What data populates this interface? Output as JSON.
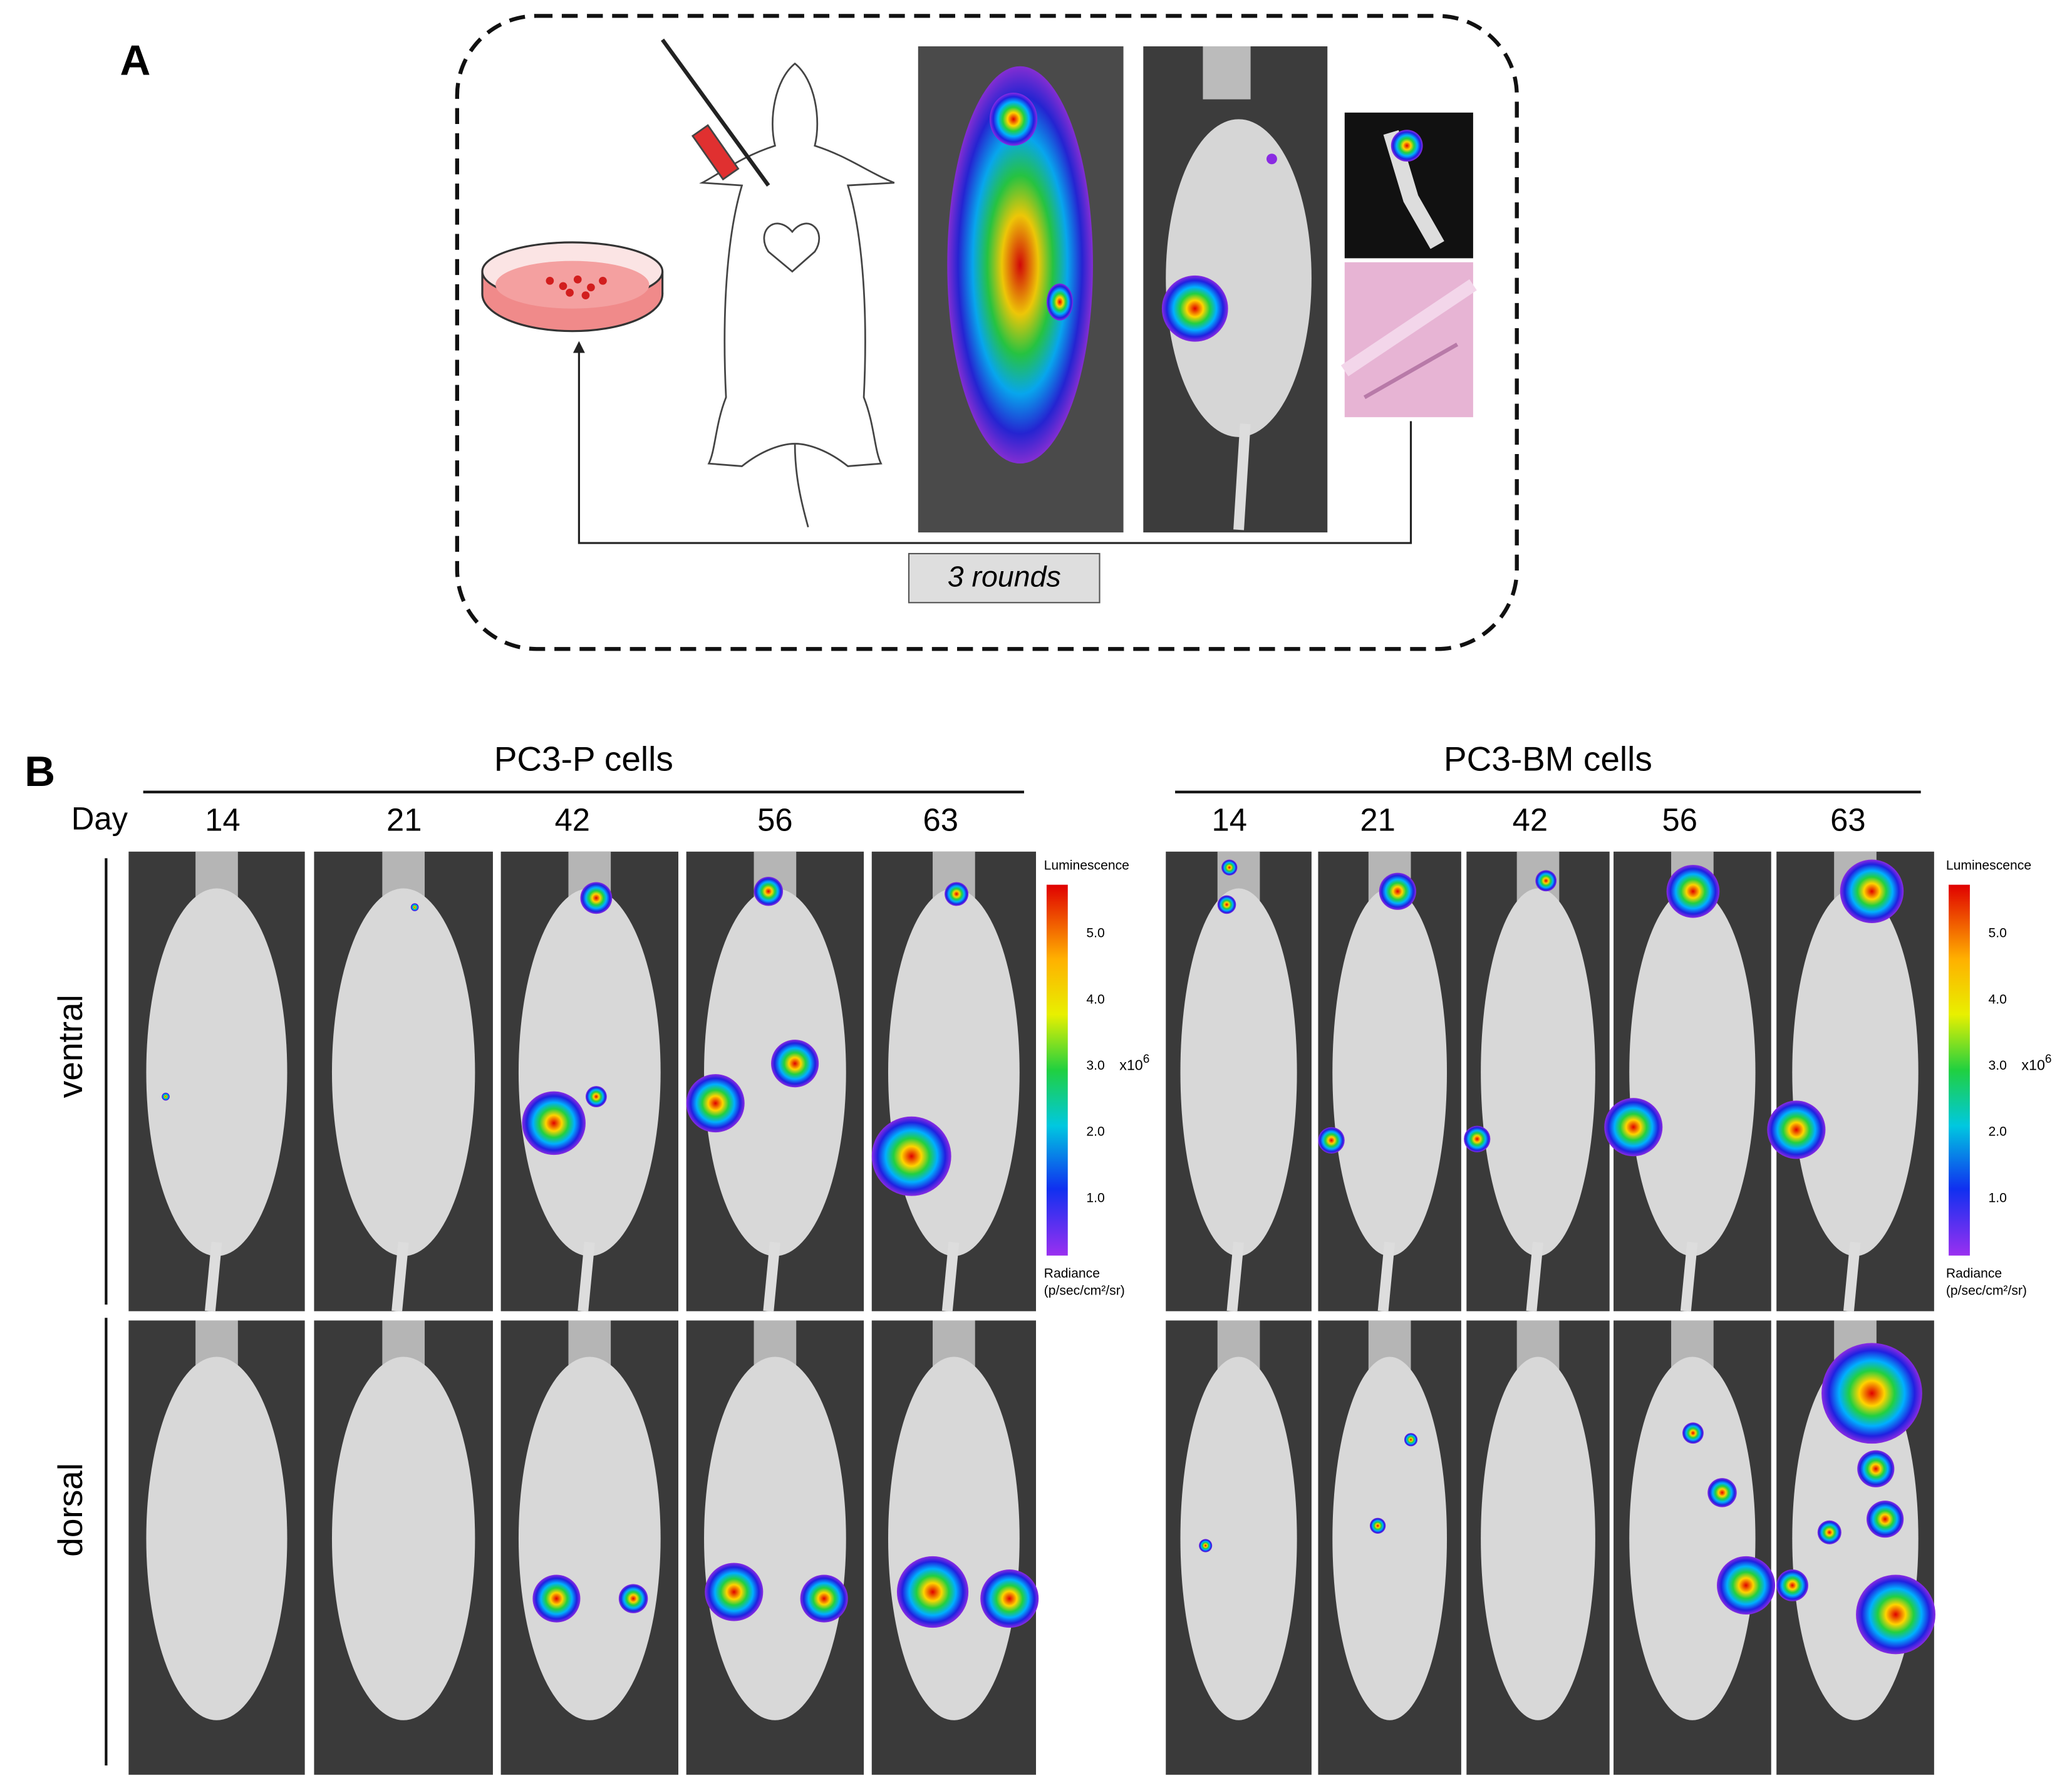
{
  "panel_a": {
    "label": "A",
    "loop_label": "3 rounds"
  },
  "panel_b": {
    "label": "B",
    "day_label": "Day",
    "groups": [
      {
        "title": "PC3-P cells",
        "days": [
          "14",
          "21",
          "42",
          "56",
          "63"
        ]
      },
      {
        "title": "PC3-BM cells",
        "days": [
          "14",
          "21",
          "42",
          "56",
          "63"
        ]
      }
    ],
    "rows": [
      "ventral",
      "dorsal"
    ]
  },
  "colorbar": {
    "title": "Luminescence",
    "ticks": [
      "5.0",
      "4.0",
      "3.0",
      "2.0",
      "1.0"
    ],
    "multiplier": "x10",
    "exponent": "6",
    "unit_line1": "Radiance",
    "unit_line2": "(p/sec/cm²/sr)"
  }
}
